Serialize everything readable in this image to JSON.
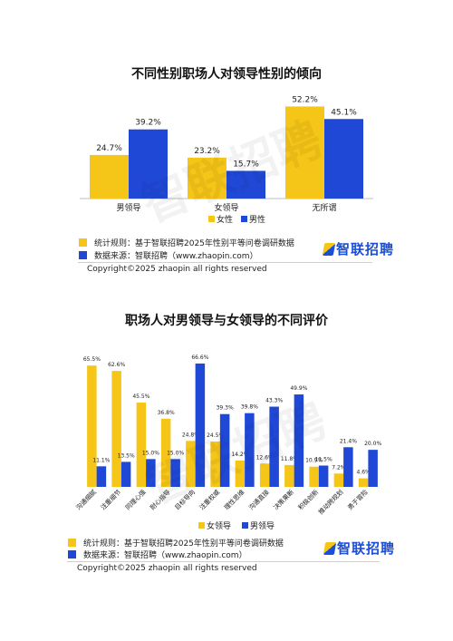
{
  "colors": {
    "female_color": "#f5c518",
    "male_color": "#1f48d6",
    "brand": "#1a4fd8"
  },
  "watermark": "智联招聘",
  "chart_data": [
    {
      "type": "bar",
      "title": "不同性别职场人对领导性别的倾向",
      "categories": [
        "男领导",
        "女领导",
        "无所谓"
      ],
      "series": [
        {
          "name": "女性",
          "values": [
            24.7,
            23.2,
            52.2
          ],
          "labels": [
            "24.7%",
            "23.2%",
            "52.2%"
          ]
        },
        {
          "name": "男性",
          "values": [
            39.2,
            15.7,
            45.1
          ],
          "labels": [
            "39.2%",
            "15.7%",
            "45.1%"
          ]
        }
      ],
      "ylim": [
        0,
        55
      ],
      "legend": "bottom-center"
    },
    {
      "type": "bar",
      "title": "职场人对男领导与女领导的不同评价",
      "categories": [
        "沟通细腻",
        "注重细节",
        "同理心强",
        "耐心指导",
        "目标导向",
        "注重权威",
        "理性思维",
        "沟通直接",
        "决策果断",
        "积极创新",
        "推动跨规划",
        "勇于冒险"
      ],
      "series": [
        {
          "name": "女领导",
          "values": [
            65.5,
            62.6,
            45.5,
            36.8,
            24.8,
            24.5,
            14.2,
            12.6,
            11.8,
            10.9,
            7.2,
            4.6
          ],
          "labels": [
            "65.5%",
            "62.6%",
            "45.5%",
            "36.8%",
            "24.8%",
            "24.5%",
            "14.2%",
            "12.6%",
            "11.8%",
            "10.9%",
            "7.2%",
            "4.6%"
          ]
        },
        {
          "name": "男领导",
          "values": [
            11.1,
            13.5,
            15.0,
            15.0,
            66.6,
            39.3,
            39.8,
            43.3,
            49.9,
            11.5,
            21.4,
            20.0
          ],
          "labels": [
            "11.1%",
            "13.5%",
            "15.0%",
            "15.0%",
            "66.6%",
            "39.3%",
            "39.8%",
            "43.3%",
            "49.9%",
            "11.5%",
            "21.4%",
            "20.0%"
          ]
        }
      ],
      "ylim": [
        0,
        70
      ],
      "legend": "bottom-center"
    }
  ],
  "notes": {
    "rule": "统计规则：基于智联招聘2025年性别平等问卷调研数据",
    "source": "数据来源：智联招聘（www.zhaopin.com）",
    "copyright": "Copyright©2025 zhaopin all rights reserved"
  },
  "logo_text": "智联招聘"
}
